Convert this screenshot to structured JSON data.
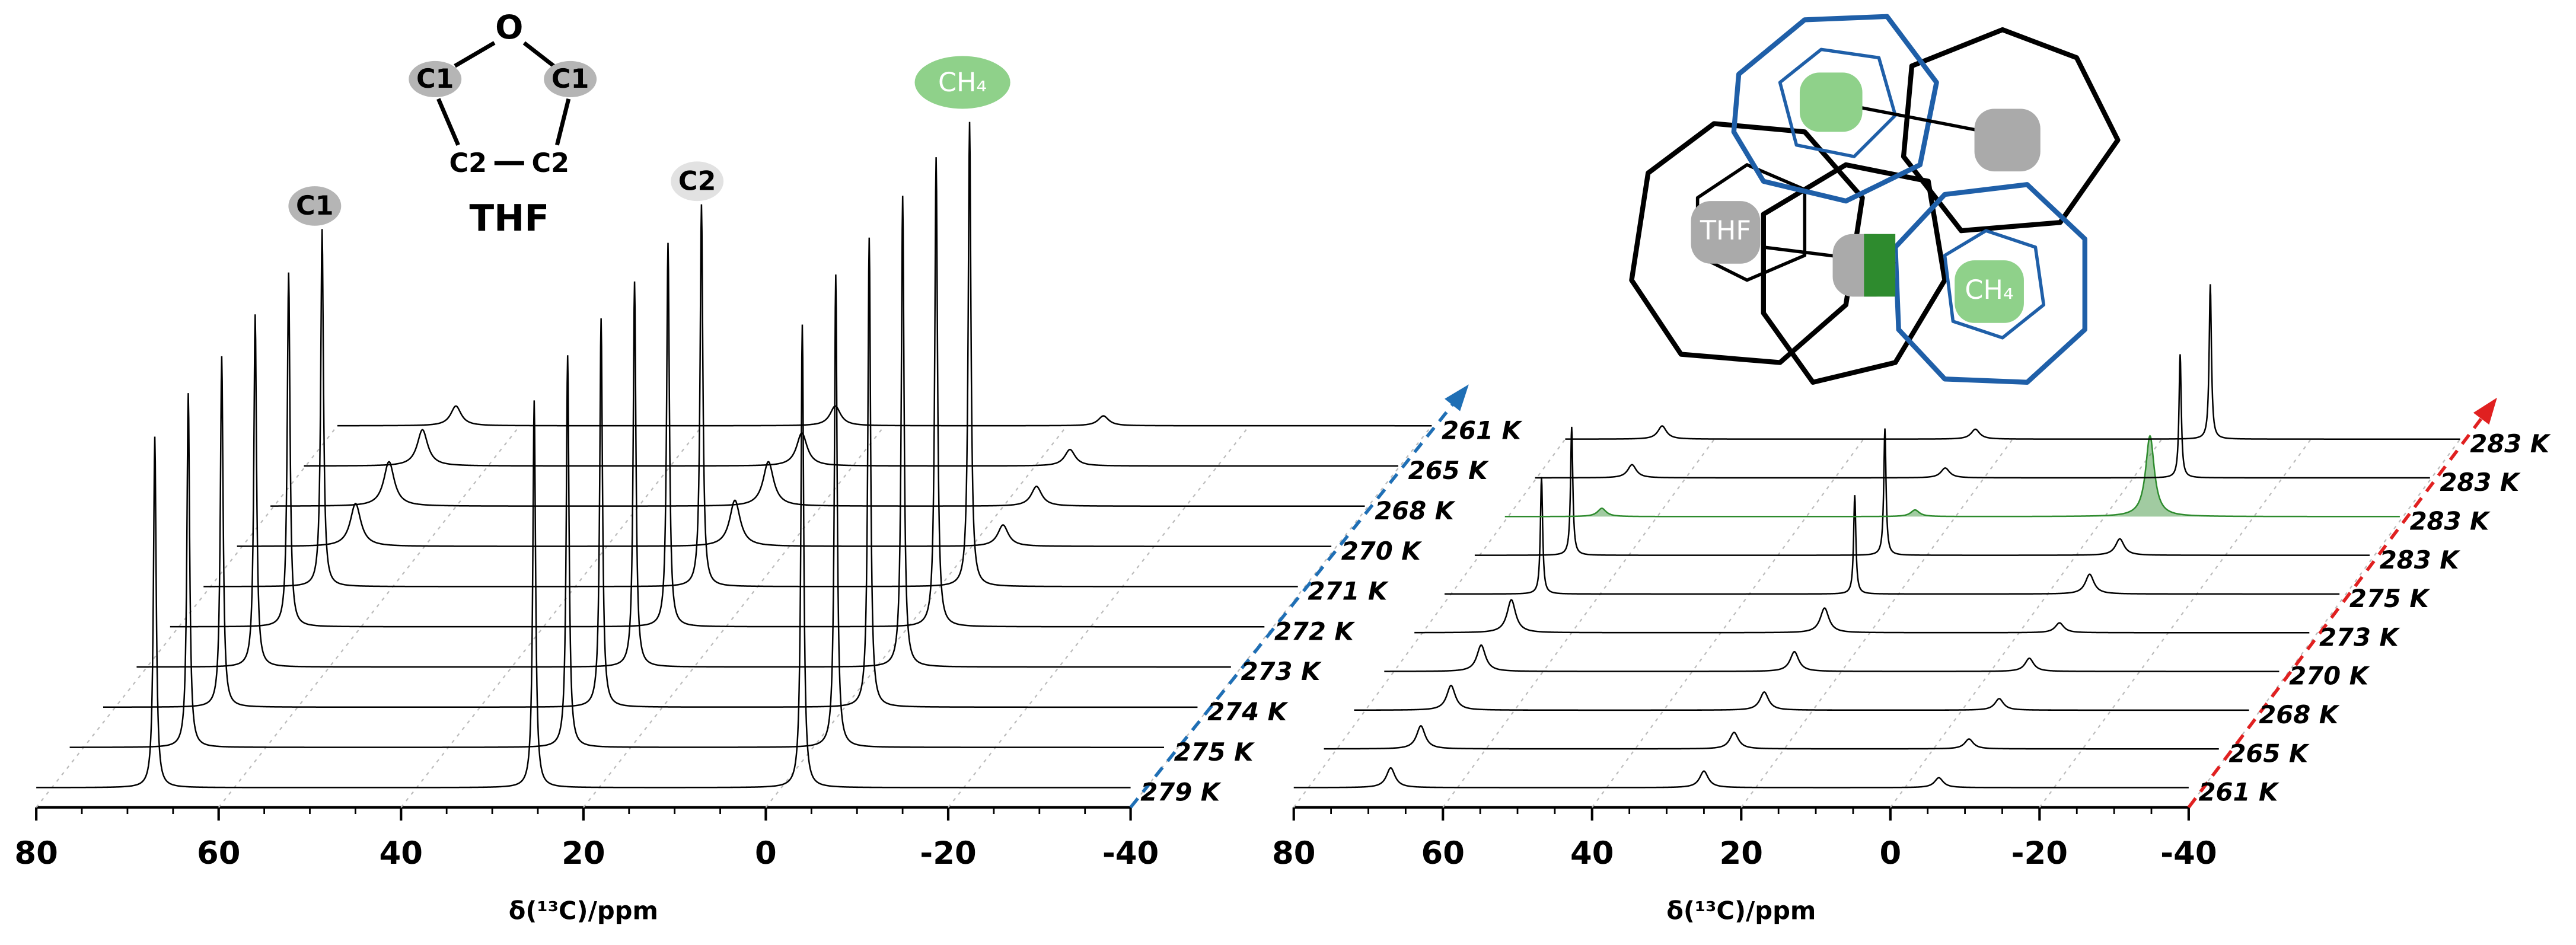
{
  "chart_data": [
    {
      "type": "waterfall",
      "xlabel": "δ(¹³C)/ppm",
      "xlim": [
        80,
        -40
      ],
      "xticks": [
        80,
        60,
        40,
        20,
        0,
        -20,
        -40
      ],
      "peak_positions": [
        67,
        25.4,
        -4
      ],
      "series": [
        {
          "name": "279 K",
          "color": "#000000",
          "values": [
            213,
            235,
            281
          ]
        },
        {
          "name": "275 K",
          "color": "#000000",
          "values": [
            215,
            238,
            287
          ]
        },
        {
          "name": "274 K",
          "color": "#000000",
          "values": [
            213,
            236,
            285
          ]
        },
        {
          "name": "273 K",
          "color": "#000000",
          "values": [
            214,
            234,
            286
          ]
        },
        {
          "name": "272 K",
          "color": "#000000",
          "values": [
            215,
            233,
            285
          ]
        },
        {
          "name": "271 K",
          "color": "#000000",
          "values": [
            217,
            232,
            282
          ]
        },
        {
          "name": "270 K",
          "color": "#000000",
          "values": [
            26,
            28,
            13
          ]
        },
        {
          "name": "268 K",
          "color": "#000000",
          "values": [
            27,
            27,
            12
          ]
        },
        {
          "name": "265 K",
          "color": "#000000",
          "values": [
            22,
            20,
            10
          ]
        },
        {
          "name": "261 K",
          "color": "#000000",
          "values": [
            12,
            12,
            6
          ]
        }
      ],
      "arrow_color": "#1f6fb5"
    },
    {
      "type": "waterfall",
      "xlabel": "δ(¹³C)/ppm",
      "xlim": [
        80,
        -40
      ],
      "xticks": [
        80,
        60,
        40,
        20,
        0,
        -20,
        -40
      ],
      "peak_positions": [
        67,
        25,
        -6.5
      ],
      "series": [
        {
          "name": "261 K",
          "color": "#000000",
          "values": [
            12,
            10,
            6
          ]
        },
        {
          "name": "265 K",
          "color": "#000000",
          "values": [
            14,
            10,
            6
          ]
        },
        {
          "name": "268 K",
          "color": "#000000",
          "values": [
            15,
            11,
            7
          ]
        },
        {
          "name": "270 K",
          "color": "#000000",
          "values": [
            16,
            12,
            8
          ]
        },
        {
          "name": "273 K",
          "color": "#000000",
          "values": [
            20,
            15,
            6
          ]
        },
        {
          "name": "275 K",
          "color": "#000000",
          "values": [
            71,
            60,
            12
          ]
        },
        {
          "name": "283 K",
          "color": "#000000",
          "values": [
            78,
            77,
            10
          ]
        },
        {
          "name": "283 K",
          "color": "#2e8b2e",
          "values": [
            5,
            4,
            49
          ]
        },
        {
          "name": "283 K",
          "color": "#000000",
          "values": [
            8,
            6,
            75
          ]
        },
        {
          "name": "283 K",
          "color": "#000000",
          "values": [
            8,
            6,
            94
          ]
        }
      ],
      "arrow_color": "#e02020"
    }
  ],
  "molecule": {
    "atoms": [
      "O",
      "C1",
      "C1",
      "C2",
      "C2"
    ],
    "name": "THF"
  },
  "peak_labels": [
    "C1",
    "C2",
    "CH₄"
  ],
  "cage_labels": [
    "THF",
    "CH₄"
  ]
}
